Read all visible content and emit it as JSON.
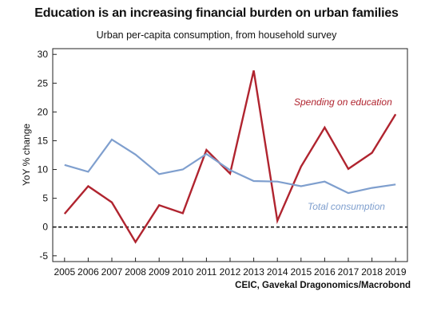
{
  "title": "Education is an increasing financial burden on urban families",
  "subtitle": "Urban per-capita consumption, from household survey",
  "source": "CEIC, Gavekal Dragonomics/Macrobond",
  "chart_data": {
    "type": "line",
    "ylabel": "YoY % change",
    "xlabel": "",
    "ylim": [
      -6,
      31
    ],
    "yticks": [
      -5,
      0,
      5,
      10,
      15,
      20,
      25,
      30
    ],
    "xlim": [
      2004.5,
      2019.5
    ],
    "x_tick_labels": [
      "2005",
      "2006",
      "2007",
      "2008",
      "2009",
      "2010",
      "2011",
      "2012",
      "2013",
      "2014",
      "2015",
      "2016",
      "2017",
      "2018",
      "2019"
    ],
    "grid": false,
    "zero_line": "dashed",
    "series": [
      {
        "name": "Spending on education",
        "color": "#b0242f",
        "x": [
          2005.0,
          2006.0,
          2007.0,
          2008.0,
          2009.0,
          2010.0,
          2011.0,
          2012.0,
          2013.0,
          2014.0,
          2015.0,
          2016.0,
          2017.0,
          2018.0,
          2019.0
        ],
        "values": [
          2.3,
          7.1,
          4.3,
          -2.6,
          3.8,
          2.4,
          13.4,
          9.3,
          27.2,
          1.1,
          10.5,
          17.3,
          10.1,
          12.9,
          19.6
        ]
      },
      {
        "name": "Total consumption",
        "color": "#7f9fce",
        "x": [
          2005.0,
          2006.0,
          2007.0,
          2008.0,
          2009.0,
          2010.0,
          2011.0,
          2012.0,
          2013.0,
          2014.0,
          2015.0,
          2016.0,
          2017.0,
          2018.0,
          2019.0
        ],
        "values": [
          10.8,
          9.6,
          15.2,
          12.6,
          9.2,
          10.0,
          12.7,
          9.9,
          8.0,
          7.9,
          7.1,
          7.9,
          5.9,
          6.8,
          7.4
        ]
      }
    ]
  }
}
